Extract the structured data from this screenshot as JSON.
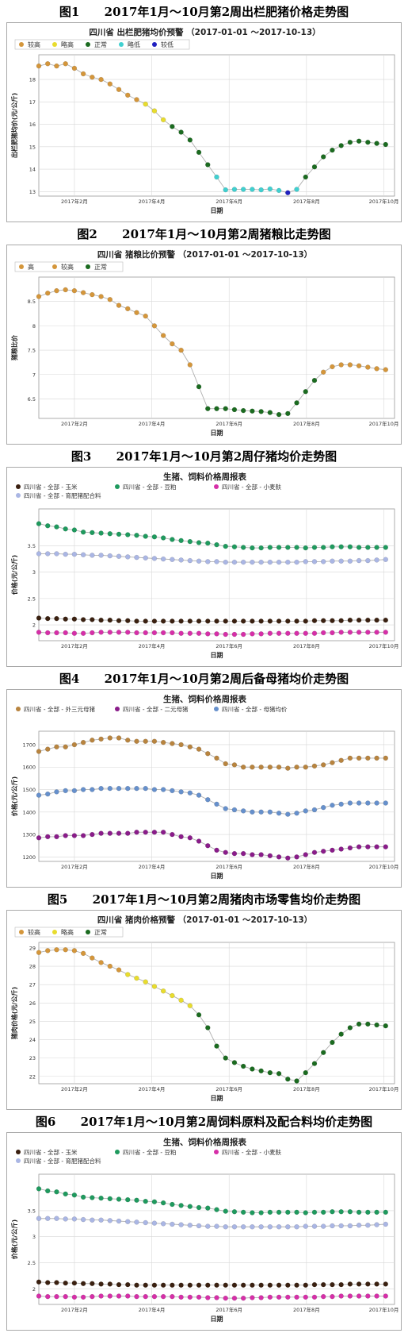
{
  "captions": [
    "图1      2017年1月～10月第2周出栏肥猪价格走势图",
    "图2      2017年1月～10月第2周猪粮比走势图",
    "图3      2017年1月～10月第2周仔猪均价走势图",
    "图4      2017年1月～10月第2周后备母猪均价走势图",
    "图5      2017年1月～10月第2周猪肉市场零售均价走势图",
    "图6      2017年1月～10月第2周饲料原料及配合料均价走势图"
  ],
  "colors": {
    "较高": "#d4963b",
    "略高": "#e8dc2e",
    "正常": "#1b6b20",
    "略低": "#40d0d0",
    "较低": "#2020c0",
    "高": "#d4963b",
    "玉米": "#3a2010",
    "豆粕": "#1f9a5e",
    "小麦麸": "#d62fa8",
    "育肥猪配合料": "#aab6e4",
    "外三元母猪": "#b8843f",
    "二元母猪": "#8a1c8a",
    "母猪均价": "#6690cc",
    "line": "#b0b0b0",
    "grid": "#d8d8d8"
  },
  "chart_data": [
    {
      "type": "line",
      "title": "四川省 出栏肥猪均价预警 （2017-01-01 ～2017-10-13）",
      "xlabel": "日期",
      "ylabel": "出栏肥猪均价(元/公斤)",
      "x_ticks": [
        "2017年2月",
        "2017年4月",
        "2017年6月",
        "2017年8月",
        "2017年10月"
      ],
      "x_tick_pos": [
        5,
        13.7,
        22.4,
        31.1,
        39.8
      ],
      "xlim": [
        1,
        41
      ],
      "ylim": [
        12.8,
        19.1
      ],
      "y_ticks": [
        13,
        14,
        15,
        16,
        17,
        18
      ],
      "legend": [
        "较高",
        "略高",
        "正常",
        "略低",
        "较低"
      ],
      "legend_position": "top-left",
      "values": [
        18.6,
        18.7,
        18.6,
        18.7,
        18.5,
        18.25,
        18.1,
        18.0,
        17.8,
        17.55,
        17.3,
        17.1,
        16.9,
        16.6,
        16.2,
        15.9,
        15.65,
        15.3,
        14.75,
        14.2,
        13.65,
        13.08,
        13.1,
        13.1,
        13.1,
        13.08,
        13.12,
        13.05,
        12.95,
        13.1,
        13.65,
        14.1,
        14.55,
        14.85,
        15.05,
        15.2,
        15.25,
        15.2,
        15.15,
        15.1
      ],
      "levels": [
        "较高",
        "较高",
        "较高",
        "较高",
        "较高",
        "较高",
        "较高",
        "较高",
        "较高",
        "较高",
        "较高",
        "较高",
        "略高",
        "略高",
        "略高",
        "正常",
        "正常",
        "正常",
        "正常",
        "正常",
        "略低",
        "略低",
        "略低",
        "略低",
        "略低",
        "略低",
        "略低",
        "略低",
        "较低",
        "略低",
        "正常",
        "正常",
        "正常",
        "正常",
        "正常",
        "正常",
        "正常",
        "正常",
        "正常",
        "正常"
      ]
    },
    {
      "type": "line",
      "title": "四川省 猪粮比价预警 （2017-01-01 ～2017-10-13）",
      "xlabel": "日期",
      "ylabel": "猪粮比价",
      "x_ticks": [
        "2017年2月",
        "2017年4月",
        "2017年6月",
        "2017年8月",
        "2017年10月"
      ],
      "x_tick_pos": [
        5,
        13.7,
        22.4,
        31.1,
        39.8
      ],
      "xlim": [
        1,
        41
      ],
      "ylim": [
        6.1,
        9.0
      ],
      "y_ticks": [
        6.5,
        7.0,
        7.5,
        8.0,
        8.5
      ],
      "legend": [
        "高",
        "较高",
        "正常"
      ],
      "legend_position": "top-left",
      "values": [
        8.6,
        8.67,
        8.72,
        8.74,
        8.72,
        8.68,
        8.64,
        8.6,
        8.54,
        8.42,
        8.35,
        8.27,
        8.2,
        8.0,
        7.8,
        7.63,
        7.5,
        7.2,
        6.75,
        6.3,
        6.3,
        6.3,
        6.28,
        6.26,
        6.25,
        6.24,
        6.22,
        6.18,
        6.2,
        6.42,
        6.65,
        6.88,
        7.05,
        7.16,
        7.2,
        7.2,
        7.18,
        7.15,
        7.12,
        7.1
      ],
      "levels": [
        "高",
        "高",
        "高",
        "高",
        "高",
        "高",
        "高",
        "高",
        "高",
        "较高",
        "较高",
        "较高",
        "较高",
        "较高",
        "较高",
        "较高",
        "较高",
        "较高",
        "正常",
        "正常",
        "正常",
        "正常",
        "正常",
        "正常",
        "正常",
        "正常",
        "正常",
        "正常",
        "正常",
        "正常",
        "正常",
        "正常",
        "较高",
        "较高",
        "较高",
        "较高",
        "较高",
        "较高",
        "较高",
        "较高"
      ]
    },
    {
      "type": "line",
      "title": "生猪、饲料价格周报表",
      "xlabel": "日期",
      "ylabel": "价格(元/公斤)",
      "x_ticks": [
        "2017年2月",
        "2017年4月",
        "2017年6月",
        "2017年8月",
        "2017年10月"
      ],
      "x_tick_pos": [
        5,
        13.7,
        22.4,
        31.1,
        39.8
      ],
      "xlim": [
        1,
        41
      ],
      "ylim": [
        1.7,
        4.2
      ],
      "y_ticks": [
        2.0,
        2.5,
        3.0,
        3.5
      ],
      "legend_position": "top-left",
      "series": [
        {
          "name": "四川省 - 全部 - 玉米",
          "key": "玉米",
          "values": [
            2.13,
            2.12,
            2.12,
            2.11,
            2.11,
            2.1,
            2.1,
            2.09,
            2.09,
            2.08,
            2.08,
            2.07,
            2.07,
            2.07,
            2.07,
            2.07,
            2.07,
            2.07,
            2.07,
            2.07,
            2.07,
            2.07,
            2.07,
            2.07,
            2.07,
            2.07,
            2.07,
            2.07,
            2.07,
            2.07,
            2.07,
            2.08,
            2.08,
            2.08,
            2.08,
            2.09,
            2.09,
            2.09,
            2.09,
            2.09
          ]
        },
        {
          "name": "四川省 - 全部 - 豆粕",
          "key": "豆粕",
          "values": [
            3.92,
            3.88,
            3.86,
            3.82,
            3.8,
            3.76,
            3.75,
            3.74,
            3.73,
            3.72,
            3.71,
            3.7,
            3.68,
            3.67,
            3.65,
            3.62,
            3.6,
            3.58,
            3.56,
            3.55,
            3.52,
            3.49,
            3.48,
            3.47,
            3.46,
            3.46,
            3.47,
            3.47,
            3.47,
            3.47,
            3.46,
            3.47,
            3.47,
            3.48,
            3.48,
            3.48,
            3.47,
            3.47,
            3.47,
            3.47
          ]
        },
        {
          "name": "四川省 - 全部 - 小麦麸",
          "key": "小麦麸",
          "values": [
            1.86,
            1.85,
            1.85,
            1.85,
            1.84,
            1.84,
            1.85,
            1.86,
            1.86,
            1.86,
            1.86,
            1.85,
            1.85,
            1.85,
            1.85,
            1.85,
            1.84,
            1.84,
            1.84,
            1.83,
            1.83,
            1.82,
            1.82,
            1.82,
            1.83,
            1.83,
            1.84,
            1.84,
            1.84,
            1.84,
            1.84,
            1.84,
            1.85,
            1.85,
            1.86,
            1.86,
            1.86,
            1.86,
            1.86,
            1.86
          ]
        },
        {
          "name": "四川省 - 全部 - 育肥猪配合料",
          "key": "育肥猪配合料",
          "values": [
            3.35,
            3.35,
            3.35,
            3.34,
            3.34,
            3.33,
            3.32,
            3.32,
            3.31,
            3.3,
            3.29,
            3.28,
            3.27,
            3.26,
            3.25,
            3.24,
            3.23,
            3.22,
            3.21,
            3.2,
            3.2,
            3.19,
            3.19,
            3.19,
            3.19,
            3.19,
            3.19,
            3.19,
            3.19,
            3.19,
            3.2,
            3.2,
            3.2,
            3.21,
            3.21,
            3.21,
            3.22,
            3.22,
            3.23,
            3.24
          ]
        }
      ]
    },
    {
      "type": "line",
      "title": "生猪、饲料价格周报表",
      "xlabel": "日期",
      "ylabel": "价格(元/公斤)",
      "x_ticks": [
        "2017年2月",
        "2017年4月",
        "2017年6月",
        "2017年8月",
        "2017年10月"
      ],
      "x_tick_pos": [
        5,
        13.7,
        22.4,
        31.1,
        39.8
      ],
      "xlim": [
        1,
        41
      ],
      "ylim": [
        1180,
        1760
      ],
      "y_ticks": [
        1200,
        1300,
        1400,
        1500,
        1600,
        1700
      ],
      "legend_position": "top-left",
      "series": [
        {
          "name": "四川省 - 全部 - 外三元母猪",
          "key": "外三元母猪",
          "values": [
            1670,
            1680,
            1690,
            1690,
            1700,
            1710,
            1720,
            1725,
            1730,
            1730,
            1720,
            1715,
            1715,
            1715,
            1710,
            1705,
            1700,
            1690,
            1680,
            1660,
            1640,
            1615,
            1610,
            1600,
            1600,
            1600,
            1600,
            1600,
            1595,
            1600,
            1600,
            1605,
            1610,
            1620,
            1630,
            1640,
            1640,
            1640,
            1640,
            1640
          ]
        },
        {
          "name": "四川省 - 全部 - 二元母猪",
          "key": "二元母猪",
          "values": [
            1285,
            1290,
            1290,
            1295,
            1295,
            1295,
            1300,
            1305,
            1305,
            1305,
            1305,
            1310,
            1310,
            1310,
            1310,
            1300,
            1290,
            1285,
            1270,
            1250,
            1230,
            1220,
            1215,
            1215,
            1210,
            1210,
            1205,
            1200,
            1195,
            1200,
            1210,
            1220,
            1225,
            1230,
            1235,
            1240,
            1245,
            1245,
            1245,
            1245
          ]
        },
        {
          "name": "四川省 - 全部 - 母猪均价",
          "key": "母猪均价",
          "values": [
            1475,
            1480,
            1490,
            1495,
            1495,
            1500,
            1500,
            1505,
            1505,
            1505,
            1505,
            1505,
            1505,
            1500,
            1500,
            1495,
            1490,
            1485,
            1475,
            1455,
            1435,
            1415,
            1410,
            1405,
            1400,
            1400,
            1400,
            1395,
            1390,
            1395,
            1405,
            1410,
            1420,
            1430,
            1435,
            1440,
            1440,
            1440,
            1440,
            1440
          ]
        }
      ]
    },
    {
      "type": "line",
      "title": "四川省 猪肉价格预警 （2017-01-01 ～2017-10-13）",
      "xlabel": "日期",
      "ylabel": "猪肉价格(元/公斤)",
      "x_ticks": [
        "2017年2月",
        "2017年4月",
        "2017年6月",
        "2017年8月",
        "2017年10月"
      ],
      "x_tick_pos": [
        5,
        13.7,
        22.4,
        31.1,
        39.8
      ],
      "xlim": [
        1,
        41
      ],
      "ylim": [
        21.6,
        29.3
      ],
      "y_ticks": [
        22,
        23,
        24,
        25,
        26,
        27,
        28,
        29
      ],
      "legend": [
        "较高",
        "略高",
        "正常"
      ],
      "legend_position": "top-left",
      "values": [
        28.75,
        28.85,
        28.9,
        28.9,
        28.85,
        28.7,
        28.45,
        28.2,
        28.0,
        27.8,
        27.55,
        27.35,
        27.15,
        26.9,
        26.65,
        26.4,
        26.15,
        25.85,
        25.35,
        24.65,
        23.65,
        23.0,
        22.75,
        22.55,
        22.4,
        22.3,
        22.2,
        22.15,
        21.85,
        21.75,
        22.2,
        22.7,
        23.3,
        23.85,
        24.3,
        24.65,
        24.85,
        24.85,
        24.8,
        24.75
      ],
      "levels": [
        "较高",
        "较高",
        "较高",
        "较高",
        "较高",
        "较高",
        "较高",
        "较高",
        "较高",
        "较高",
        "略高",
        "略高",
        "略高",
        "略高",
        "略高",
        "略高",
        "略高",
        "略高",
        "正常",
        "正常",
        "正常",
        "正常",
        "正常",
        "正常",
        "正常",
        "正常",
        "正常",
        "正常",
        "正常",
        "正常",
        "正常",
        "正常",
        "正常",
        "正常",
        "正常",
        "正常",
        "正常",
        "正常",
        "正常",
        "正常"
      ]
    },
    {
      "type": "line",
      "title": "生猪、饲料价格周报表",
      "xlabel": "日期",
      "ylabel": "价格(元/公斤)",
      "x_ticks": [
        "2017年2月",
        "2017年4月",
        "2017年6月",
        "2017年8月",
        "2017年10月"
      ],
      "x_tick_pos": [
        5,
        13.7,
        22.4,
        31.1,
        39.8
      ],
      "xlim": [
        1,
        41
      ],
      "ylim": [
        1.7,
        4.2
      ],
      "y_ticks": [
        2.0,
        2.5,
        3.0,
        3.5
      ],
      "legend_position": "top-left",
      "series": [
        {
          "name": "四川省 - 全部 - 玉米",
          "key": "玉米",
          "values": [
            2.13,
            2.12,
            2.12,
            2.11,
            2.11,
            2.1,
            2.1,
            2.09,
            2.09,
            2.08,
            2.08,
            2.07,
            2.07,
            2.07,
            2.07,
            2.07,
            2.07,
            2.07,
            2.07,
            2.07,
            2.07,
            2.07,
            2.07,
            2.07,
            2.07,
            2.07,
            2.07,
            2.07,
            2.07,
            2.07,
            2.07,
            2.08,
            2.08,
            2.08,
            2.08,
            2.09,
            2.09,
            2.09,
            2.09,
            2.09
          ]
        },
        {
          "name": "四川省 - 全部 - 豆粕",
          "key": "豆粕",
          "values": [
            3.92,
            3.88,
            3.86,
            3.82,
            3.8,
            3.76,
            3.75,
            3.74,
            3.73,
            3.72,
            3.71,
            3.7,
            3.68,
            3.67,
            3.65,
            3.62,
            3.6,
            3.58,
            3.56,
            3.55,
            3.52,
            3.49,
            3.48,
            3.47,
            3.46,
            3.46,
            3.47,
            3.47,
            3.47,
            3.47,
            3.46,
            3.47,
            3.47,
            3.48,
            3.48,
            3.48,
            3.47,
            3.47,
            3.47,
            3.47
          ]
        },
        {
          "name": "四川省 - 全部 - 小麦麸",
          "key": "小麦麸",
          "values": [
            1.86,
            1.85,
            1.85,
            1.85,
            1.84,
            1.84,
            1.85,
            1.86,
            1.86,
            1.86,
            1.86,
            1.85,
            1.85,
            1.85,
            1.85,
            1.85,
            1.84,
            1.84,
            1.84,
            1.83,
            1.83,
            1.82,
            1.82,
            1.82,
            1.83,
            1.83,
            1.84,
            1.84,
            1.84,
            1.84,
            1.84,
            1.84,
            1.85,
            1.85,
            1.86,
            1.86,
            1.86,
            1.86,
            1.86,
            1.86
          ]
        },
        {
          "name": "四川省 - 全部 - 育肥猪配合料",
          "key": "育肥猪配合料",
          "values": [
            3.35,
            3.35,
            3.35,
            3.34,
            3.34,
            3.33,
            3.32,
            3.32,
            3.31,
            3.3,
            3.29,
            3.28,
            3.27,
            3.26,
            3.25,
            3.24,
            3.23,
            3.22,
            3.21,
            3.2,
            3.2,
            3.19,
            3.19,
            3.19,
            3.19,
            3.19,
            3.19,
            3.19,
            3.19,
            3.19,
            3.2,
            3.2,
            3.2,
            3.21,
            3.21,
            3.21,
            3.22,
            3.22,
            3.23,
            3.24
          ]
        }
      ]
    }
  ]
}
